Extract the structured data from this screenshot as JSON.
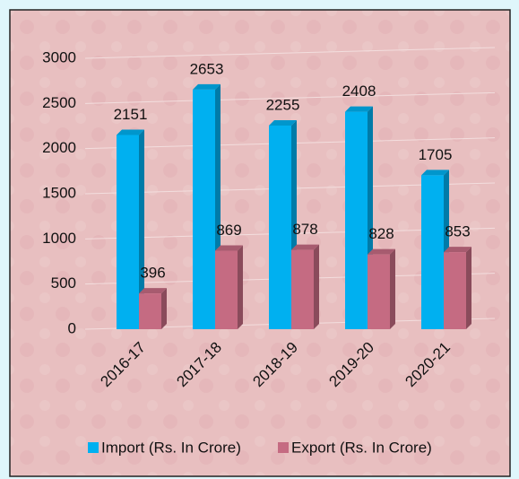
{
  "chart_data": {
    "type": "bar",
    "categories": [
      "2016-17",
      "2017-18",
      "2018-19",
      "2019-20",
      "2020-21"
    ],
    "series": [
      {
        "name": "Import (Rs. In Crore)",
        "color": "#00b0f0",
        "values": [
          2151,
          2653,
          2255,
          2408,
          1705
        ]
      },
      {
        "name": "Export (Rs. In Crore)",
        "color": "#c56b82",
        "values": [
          396,
          869,
          878,
          828,
          853
        ]
      }
    ],
    "ylim": [
      0,
      3000
    ],
    "yticks": [
      0,
      500,
      1000,
      1500,
      2000,
      2500,
      3000
    ],
    "grid": true,
    "legend": "bottom"
  }
}
